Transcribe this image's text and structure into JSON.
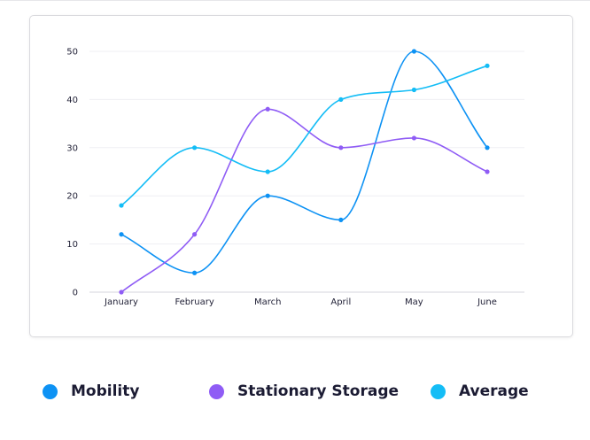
{
  "chart_data": {
    "type": "line",
    "smooth": true,
    "categories": [
      "January",
      "February",
      "March",
      "April",
      "May",
      "June"
    ],
    "ylim": [
      0,
      50
    ],
    "yticks": [
      0,
      10,
      20,
      30,
      40,
      50
    ],
    "grid": true,
    "legend_position": "bottom",
    "series": [
      {
        "name": "Mobility",
        "color": "#0d92f4",
        "values": [
          12,
          4,
          20,
          15,
          50,
          30
        ]
      },
      {
        "name": "Stationary Storage",
        "color": "#8f5cf5",
        "values": [
          0,
          12,
          38,
          30,
          32,
          25
        ]
      },
      {
        "name": "Average",
        "color": "#14bdf6",
        "values": [
          18,
          30,
          25,
          40,
          42,
          47
        ]
      }
    ]
  }
}
